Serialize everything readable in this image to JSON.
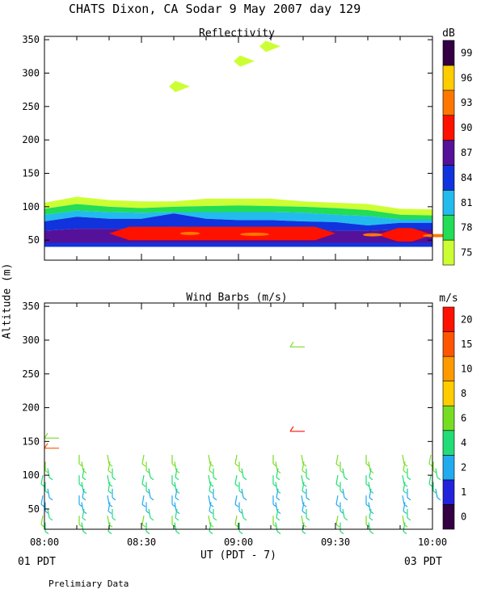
{
  "header": {
    "title": "CHATS Dixon, CA  Sodar   9 May 2007  day 129"
  },
  "footer": {
    "left_time_label": "01 PDT",
    "right_time_label": "03 PDT",
    "note": "Prelimiary Data",
    "xlabel": "UT  (PDT - 7)",
    "ylabel": "Altitude  (m)"
  },
  "chart_data": [
    {
      "type": "heatmap",
      "title": "Reflectivity",
      "ylim": [
        20,
        355
      ],
      "y_ticks": [
        "50",
        "100",
        "150",
        "200",
        "250",
        "300",
        "350"
      ],
      "colorbar": {
        "unit": "dB",
        "labels": [
          "75",
          "78",
          "81",
          "84",
          "87",
          "90",
          "93",
          "96",
          "99"
        ],
        "colors": [
          "#ccff33",
          "#22dd55",
          "#22bbee",
          "#1133dd",
          "#551199",
          "#ff1100",
          "#ff7700",
          "#ffcc00",
          "#330044"
        ]
      },
      "profile_x_minutes": [
        0,
        10,
        20,
        30,
        40,
        50,
        60,
        70,
        80,
        90,
        100,
        110,
        120
      ],
      "profile_top_altitude": [
        106,
        115,
        110,
        108,
        108,
        112,
        112,
        112,
        108,
        106,
        104,
        97,
        96
      ],
      "layer_boundaries_altitude": [
        [
          97,
          104,
          100,
          98,
          100,
          101,
          102,
          101,
          100,
          98,
          95,
          88,
          87
        ],
        [
          88,
          94,
          92,
          91,
          92,
          92,
          92,
          92,
          91,
          88,
          86,
          81,
          81
        ],
        [
          78,
          85,
          82,
          82,
          90,
          82,
          80,
          80,
          78,
          77,
          72,
          76,
          76
        ],
        [
          64,
          67,
          67,
          67,
          70,
          67,
          66,
          66,
          67,
          64,
          64,
          66,
          66
        ],
        [
          46,
          46,
          46,
          46,
          46,
          46,
          46,
          46,
          46,
          46,
          46,
          46,
          46
        ]
      ],
      "red_patches": [
        {
          "minutes": [
            20,
            90
          ],
          "altitude": [
            50,
            70
          ]
        },
        {
          "minutes": [
            103,
            120
          ],
          "altitude": [
            48,
            68
          ]
        }
      ],
      "upper_blobs": [
        {
          "minute": 42,
          "altitude": 280
        },
        {
          "minute": 62,
          "altitude": 318
        },
        {
          "minute": 70,
          "altitude": 340
        }
      ]
    },
    {
      "type": "scatter",
      "title": "Wind Barbs (m/s)",
      "xlabel": "UT  (PDT - 7)",
      "ylabel": "Altitude  (m)",
      "xlim": [
        "08:00",
        "10:00"
      ],
      "x_ticks": [
        "08:00",
        "08:30",
        "09:00",
        "09:30",
        "10:00"
      ],
      "ylim": [
        20,
        355
      ],
      "y_ticks": [
        "50",
        "100",
        "150",
        "200",
        "250",
        "300",
        "350"
      ],
      "colorbar": {
        "unit": "m/s",
        "labels": [
          "0",
          "1",
          "2",
          "4",
          "6",
          "8",
          "10",
          "15",
          "20"
        ],
        "colors": [
          "#330044",
          "#2222dd",
          "#22aaee",
          "#22dd77",
          "#77dd22",
          "#ffcc00",
          "#ff9900",
          "#ff5500",
          "#ff1100"
        ]
      },
      "barb_minutes": [
        0,
        10,
        20,
        30,
        40,
        50,
        60,
        70,
        80,
        90,
        100,
        110,
        120
      ],
      "barb_altitudes": [
        130,
        120,
        110,
        100,
        90,
        80,
        70,
        60,
        50,
        40,
        30
      ],
      "special_barbs": [
        {
          "minute": 0,
          "altitude": 140,
          "speed_color": "#ff5500"
        },
        {
          "minute": 0,
          "altitude": 155,
          "speed_color": "#77dd22"
        },
        {
          "minute": 76,
          "altitude": 165,
          "speed_color": "#ff1100"
        },
        {
          "minute": 76,
          "altitude": 290,
          "speed_color": "#77dd22"
        }
      ]
    }
  ]
}
